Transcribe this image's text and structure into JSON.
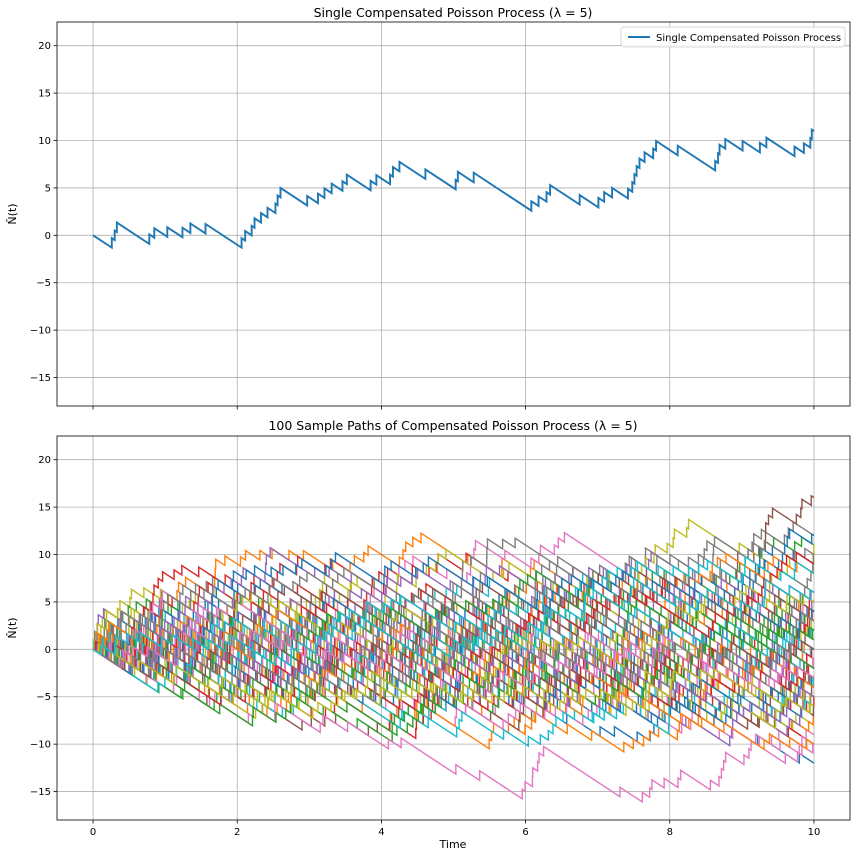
{
  "chart_data": [
    {
      "type": "line",
      "title": "Single Compensated Poisson Process (λ = 5)",
      "xlabel": "",
      "ylabel": "N̂(t)",
      "xlim": [
        -0.5,
        10.5
      ],
      "ylim": [
        -18,
        22.5
      ],
      "xticks": [
        0,
        2,
        4,
        6,
        8,
        10
      ],
      "xtick_labels_shown": false,
      "yticks": [
        -15,
        -10,
        -5,
        0,
        5,
        10,
        15,
        20
      ],
      "grid": true,
      "legend": {
        "placement": "top-right",
        "entries": [
          "Single Compensated Poisson Process"
        ]
      },
      "series": [
        {
          "name": "Single Compensated Poisson Process",
          "color": "#1f77b4",
          "lambda": 5,
          "t_end": 10,
          "jump_times": [
            0.26,
            0.3,
            0.33,
            0.78,
            0.85,
            1.03,
            1.24,
            1.35,
            1.56,
            2.06,
            2.11,
            2.2,
            2.24,
            2.33,
            2.42,
            2.53,
            2.56,
            2.6,
            2.97,
            3.12,
            3.21,
            3.31,
            3.46,
            3.52,
            3.85,
            3.93,
            4.12,
            4.16,
            4.25,
            4.61,
            5.03,
            5.06,
            5.28,
            6.08,
            6.18,
            6.29,
            6.34,
            6.75,
            7.01,
            7.09,
            7.2,
            7.42,
            7.48,
            7.51,
            7.54,
            7.58,
            7.65,
            7.77,
            7.81,
            8.11,
            8.63,
            8.67,
            8.69,
            8.77,
            9.01,
            9.25,
            9.34,
            9.73,
            9.86,
            9.95,
            9.97
          ]
        }
      ]
    },
    {
      "type": "line",
      "title": "100 Sample Paths of Compensated Poisson Process (λ = 5)",
      "xlabel": "Time",
      "ylabel": "N̂(t)",
      "xlim": [
        -0.5,
        10.5
      ],
      "ylim": [
        -18,
        22.5
      ],
      "xticks": [
        0,
        2,
        4,
        6,
        8,
        10
      ],
      "yticks": [
        -15,
        -10,
        -5,
        0,
        5,
        10,
        15,
        20
      ],
      "grid": true,
      "n_paths": 100,
      "lambda": 5,
      "t_end": 10,
      "color_cycle": [
        "#1f77b4",
        "#ff7f0e",
        "#2ca02c",
        "#d62728",
        "#9467bd",
        "#8c564b",
        "#e377c2",
        "#7f7f7f",
        "#bcbd22",
        "#17becf"
      ],
      "endpoint_range": [
        -18,
        18
      ]
    }
  ]
}
